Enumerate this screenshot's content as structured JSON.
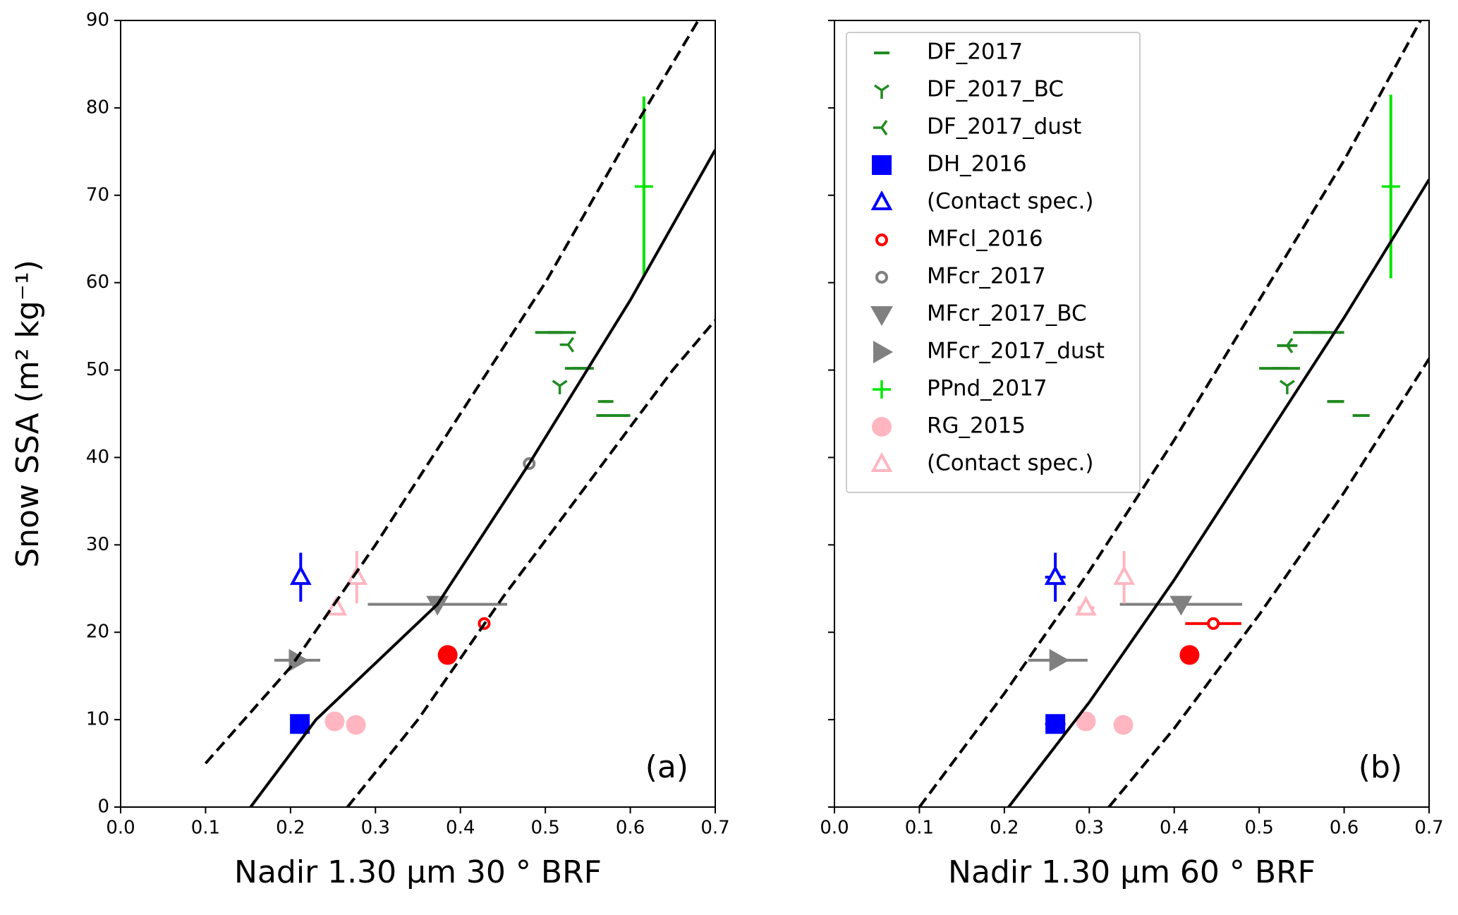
{
  "chart_data": [
    {
      "type": "scatter",
      "xlabel": "Nadir 1.30 μm 30 ° BRF",
      "ylabel": "Snow SSA (m² kg⁻¹)",
      "annotation": "(a)",
      "xlim": [
        0,
        0.7
      ],
      "ylim": [
        0,
        90
      ],
      "xticks": [
        {
          "value": 0,
          "label": "0.0"
        },
        0.1,
        0.2,
        0.3,
        0.4,
        0.5,
        0.6,
        0.7
      ],
      "yticks": [
        0,
        10,
        20,
        30,
        40,
        50,
        60,
        70,
        80,
        90
      ],
      "series": [
        {
          "name": "DF_2017",
          "color": "#228b22",
          "marker": "hline",
          "x": [
            0.512,
            0.54,
            0.571,
            0.58
          ],
          "values": [
            54.3,
            50.2,
            46.4,
            44.8
          ],
          "xerr": [
            0.024,
            0.017,
            0.004,
            0.02
          ]
        },
        {
          "name": "DF_2017_BC",
          "color": "#228b22",
          "marker": "tri_down",
          "x": [
            0.517
          ],
          "values": [
            48.2
          ]
        },
        {
          "name": "DF_2017_dust",
          "color": "#228b22",
          "marker": "tri_left",
          "x": [
            0.527
          ],
          "values": [
            52.9
          ]
        },
        {
          "name": "DH_2016",
          "color": "#0000ff",
          "marker": "square",
          "x": [
            0.211
          ],
          "values": [
            9.5
          ]
        },
        {
          "name": "(Contact spec.)",
          "color": "#0000ff",
          "marker": "triangle_up_open",
          "x": [
            0.212
          ],
          "values": [
            26.3
          ],
          "yerr": [
            2.8
          ]
        },
        {
          "name": "MFcl_2016",
          "color": "#ff0000",
          "marker": "circle_open",
          "x": [
            0.428
          ],
          "values": [
            21.0
          ]
        },
        {
          "name": "MFcr_2017",
          "color": "#808080",
          "marker": "circle_open",
          "x": [
            0.481
          ],
          "values": [
            39.3
          ]
        },
        {
          "name": "MFcr_2017_BC",
          "color": "#808080",
          "marker": "triangle_down",
          "x": [
            0.373
          ],
          "values": [
            23.2
          ],
          "xerr": [
            0.082
          ]
        },
        {
          "name": "MFcr_2017_dust",
          "color": "#808080",
          "marker": "triangle_right",
          "x": [
            0.208
          ],
          "values": [
            16.8
          ],
          "xerr": [
            0.027
          ]
        },
        {
          "name": "PPnd_2017",
          "color": "#00e600",
          "marker": "plus",
          "x": [
            0.616
          ],
          "values": [
            71.0
          ],
          "yerr": [
            10.3
          ]
        },
        {
          "name": "RG_2015",
          "color": "#ffb6c1",
          "marker": "circle",
          "x": [
            0.252,
            0.277
          ],
          "values": [
            9.8,
            9.4
          ]
        },
        {
          "name": "(Contact spec.)",
          "color": "#ffb6c1",
          "marker": "triangle_up_open",
          "x": [
            0.278,
            0.254
          ],
          "values": [
            26.3,
            22.8
          ],
          "yerr": [
            3.0,
            null
          ]
        },
        {
          "color": "#ff0000",
          "marker": "circle",
          "x": [
            0.385
          ],
          "values": [
            17.4
          ]
        },
        {
          "color": "#000000",
          "linestyle": "solid",
          "x": [
            0.153,
            0.23,
            0.373,
            0.481,
            0.6,
            0.7
          ],
          "values": [
            0,
            10,
            23.2,
            39.3,
            58,
            75.2
          ]
        },
        {
          "color": "#000000",
          "linestyle": "dashed",
          "x": [
            0.1,
            0.2,
            0.3,
            0.4,
            0.5,
            0.6,
            0.68
          ],
          "values": [
            5,
            16,
            30,
            45,
            60,
            77,
            90
          ]
        },
        {
          "color": "#000000",
          "linestyle": "dashed",
          "x": [
            0.267,
            0.35,
            0.45,
            0.55,
            0.65,
            0.7
          ],
          "values": [
            0,
            10,
            24,
            37,
            50,
            55.7
          ]
        }
      ]
    },
    {
      "type": "scatter",
      "xlabel": "Nadir 1.30 μm 60 ° BRF",
      "annotation": "(b)",
      "legend": "upper left",
      "ytick_labels": false,
      "xlim": [
        0,
        0.7
      ],
      "ylim": [
        0,
        90
      ],
      "xticks": [
        {
          "value": 0,
          "label": "0.0"
        },
        0.1,
        0.2,
        0.3,
        0.4,
        0.5,
        0.6,
        0.7
      ],
      "yticks": [
        0,
        10,
        20,
        30,
        40,
        50,
        60,
        70,
        80,
        90
      ],
      "series": [
        {
          "name": "DF_2017",
          "color": "#228b22",
          "marker": "hline",
          "x": [
            0.57,
            0.524,
            0.59,
            0.62
          ],
          "values": [
            54.3,
            50.2,
            46.4,
            44.8
          ],
          "xerr": [
            0.03,
            0.024,
            0.01,
            0.01
          ]
        },
        {
          "name": "DF_2017_BC",
          "color": "#228b22",
          "marker": "tri_down",
          "x": [
            0.533
          ],
          "values": [
            48.2
          ]
        },
        {
          "name": "DF_2017_dust",
          "color": "#228b22",
          "marker": "tri_left",
          "x": [
            0.533
          ],
          "values": [
            52.8
          ],
          "xerr": [
            0.012
          ]
        },
        {
          "name": "DH_2016",
          "color": "#0000ff",
          "marker": "square",
          "x": [
            0.26
          ],
          "values": [
            9.5
          ],
          "xerr": [
            0.012
          ]
        },
        {
          "name": "(Contact spec.)",
          "color": "#0000ff",
          "marker": "triangle_up_open",
          "x": [
            0.26
          ],
          "values": [
            26.3
          ],
          "yerr": [
            2.8
          ],
          "xerr": [
            0.012
          ]
        },
        {
          "name": "MFcl_2016",
          "color": "#ff0000",
          "marker": "circle_open",
          "x": [
            0.446
          ],
          "values": [
            21.0
          ],
          "xerr": [
            0.033
          ]
        },
        {
          "name": "MFcr_2017",
          "color": "#808080",
          "marker": "circle_open",
          "x": [],
          "values": []
        },
        {
          "name": "MFcr_2017_BC",
          "color": "#808080",
          "marker": "triangle_down",
          "x": [
            0.408
          ],
          "values": [
            23.2
          ],
          "xerr": [
            0.072
          ]
        },
        {
          "name": "MFcr_2017_dust",
          "color": "#808080",
          "marker": "triangle_right",
          "x": [
            0.263
          ],
          "values": [
            16.8
          ],
          "xerr": [
            0.035
          ]
        },
        {
          "name": "PPnd_2017",
          "color": "#00e600",
          "marker": "plus",
          "x": [
            0.655
          ],
          "values": [
            71.0
          ],
          "yerr": [
            10.5
          ]
        },
        {
          "name": "RG_2015",
          "color": "#ffb6c1",
          "marker": "circle",
          "x": [
            0.296,
            0.34
          ],
          "values": [
            9.8,
            9.4
          ]
        },
        {
          "name": "(Contact spec.)",
          "color": "#ffb6c1",
          "marker": "triangle_up_open",
          "x": [
            0.341,
            0.296
          ],
          "values": [
            26.3,
            22.8
          ],
          "yerr": [
            3.0,
            null
          ],
          "xerr": [
            null,
            0.01
          ]
        },
        {
          "color": "#ff0000",
          "marker": "circle",
          "x": [
            0.418
          ],
          "values": [
            17.4
          ]
        },
        {
          "color": "#000000",
          "linestyle": "solid",
          "x": [
            0.205,
            0.3,
            0.4,
            0.5,
            0.6,
            0.7
          ],
          "values": [
            0,
            12,
            26,
            41,
            56,
            71.8
          ]
        },
        {
          "color": "#000000",
          "linestyle": "dashed",
          "x": [
            0.1,
            0.2,
            0.3,
            0.4,
            0.5,
            0.6,
            0.69
          ],
          "values": [
            0,
            13,
            27,
            42,
            58,
            74,
            90
          ]
        },
        {
          "color": "#000000",
          "linestyle": "dashed",
          "x": [
            0.323,
            0.4,
            0.5,
            0.6,
            0.7
          ],
          "values": [
            0,
            9,
            22,
            36,
            51.3
          ]
        }
      ]
    }
  ]
}
